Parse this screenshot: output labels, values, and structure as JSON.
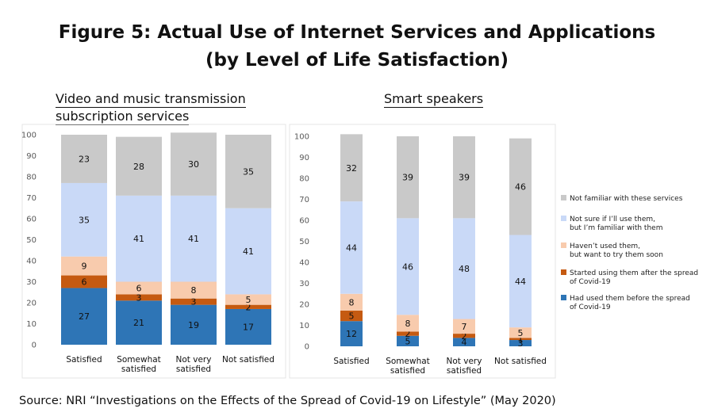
{
  "title_line1": "Figure 5: Actual Use of Internet Services and Applications",
  "title_line2": "(by Level of Life Satisfaction)",
  "source": "Source: NRI “Investigations on the Effects of the Spread of Covid-19 on Lifestyle” (May 2020)",
  "colors": {
    "had_used": "#2e75b6",
    "started": "#c55a11",
    "want_to_try": "#f8cbad",
    "not_sure": "#c9d9f7",
    "not_familiar": "#c9c9c9"
  },
  "legend": [
    {
      "key": "not_familiar",
      "lines": [
        "Not familiar with these services"
      ]
    },
    {
      "key": "not_sure",
      "lines": [
        "Not sure if I’ll use them,",
        "but I’m familiar with them"
      ]
    },
    {
      "key": "want_to_try",
      "lines": [
        "Haven’t used them,",
        "but want to try them soon"
      ]
    },
    {
      "key": "started",
      "lines": [
        "Started using them after the spread",
        "of Covid-19"
      ]
    },
    {
      "key": "had_used",
      "lines": [
        "Had used them before the spread",
        "of Covid-19"
      ]
    }
  ],
  "chart_data": [
    {
      "type": "bar",
      "stacked": true,
      "title_lines": [
        "Video and music transmission",
        "subscription services"
      ],
      "categories": [
        [
          "Satisfied"
        ],
        [
          "Somewhat",
          "satisfied"
        ],
        [
          "Not very",
          "satisfied"
        ],
        [
          "Not satisfied"
        ]
      ],
      "ylim": [
        0,
        100
      ],
      "yticks": [
        0,
        10,
        20,
        30,
        40,
        50,
        60,
        70,
        80,
        90,
        100
      ],
      "series": [
        {
          "key": "had_used",
          "name": "Had used them before the spread of Covid-19",
          "values": [
            27,
            21,
            19,
            17
          ]
        },
        {
          "key": "started",
          "name": "Started using them after the spread of Covid-19",
          "values": [
            6,
            3,
            3,
            2
          ]
        },
        {
          "key": "want_to_try",
          "name": "Haven’t used them, but want to try them soon",
          "values": [
            9,
            6,
            8,
            5
          ]
        },
        {
          "key": "not_sure",
          "name": "Not sure if I’ll use them, but I’m familiar with them",
          "values": [
            35,
            41,
            41,
            41
          ]
        },
        {
          "key": "not_familiar",
          "name": "Not familiar with these services",
          "values": [
            23,
            28,
            30,
            35
          ]
        }
      ]
    },
    {
      "type": "bar",
      "stacked": true,
      "title_lines": [
        "Smart speakers"
      ],
      "categories": [
        [
          "Satisfied"
        ],
        [
          "Somewhat",
          "satisfied"
        ],
        [
          "Not very",
          "satisfied"
        ],
        [
          "Not satisfied"
        ]
      ],
      "ylim": [
        0,
        100
      ],
      "yticks": [
        0,
        10,
        20,
        30,
        40,
        50,
        60,
        70,
        80,
        90,
        100
      ],
      "series": [
        {
          "key": "had_used",
          "name": "Had used them before the spread of Covid-19",
          "values": [
            12,
            5,
            4,
            3
          ]
        },
        {
          "key": "started",
          "name": "Started using them after the spread of Covid-19",
          "values": [
            5,
            2,
            2,
            1
          ]
        },
        {
          "key": "want_to_try",
          "name": "Haven’t used them, but want to try them soon",
          "values": [
            8,
            8,
            7,
            5
          ]
        },
        {
          "key": "not_sure",
          "name": "Not sure if I’ll use them, but I’m familiar with them",
          "values": [
            44,
            46,
            48,
            44
          ]
        },
        {
          "key": "not_familiar",
          "name": "Not familiar with these services",
          "values": [
            32,
            39,
            39,
            46
          ]
        }
      ]
    }
  ]
}
